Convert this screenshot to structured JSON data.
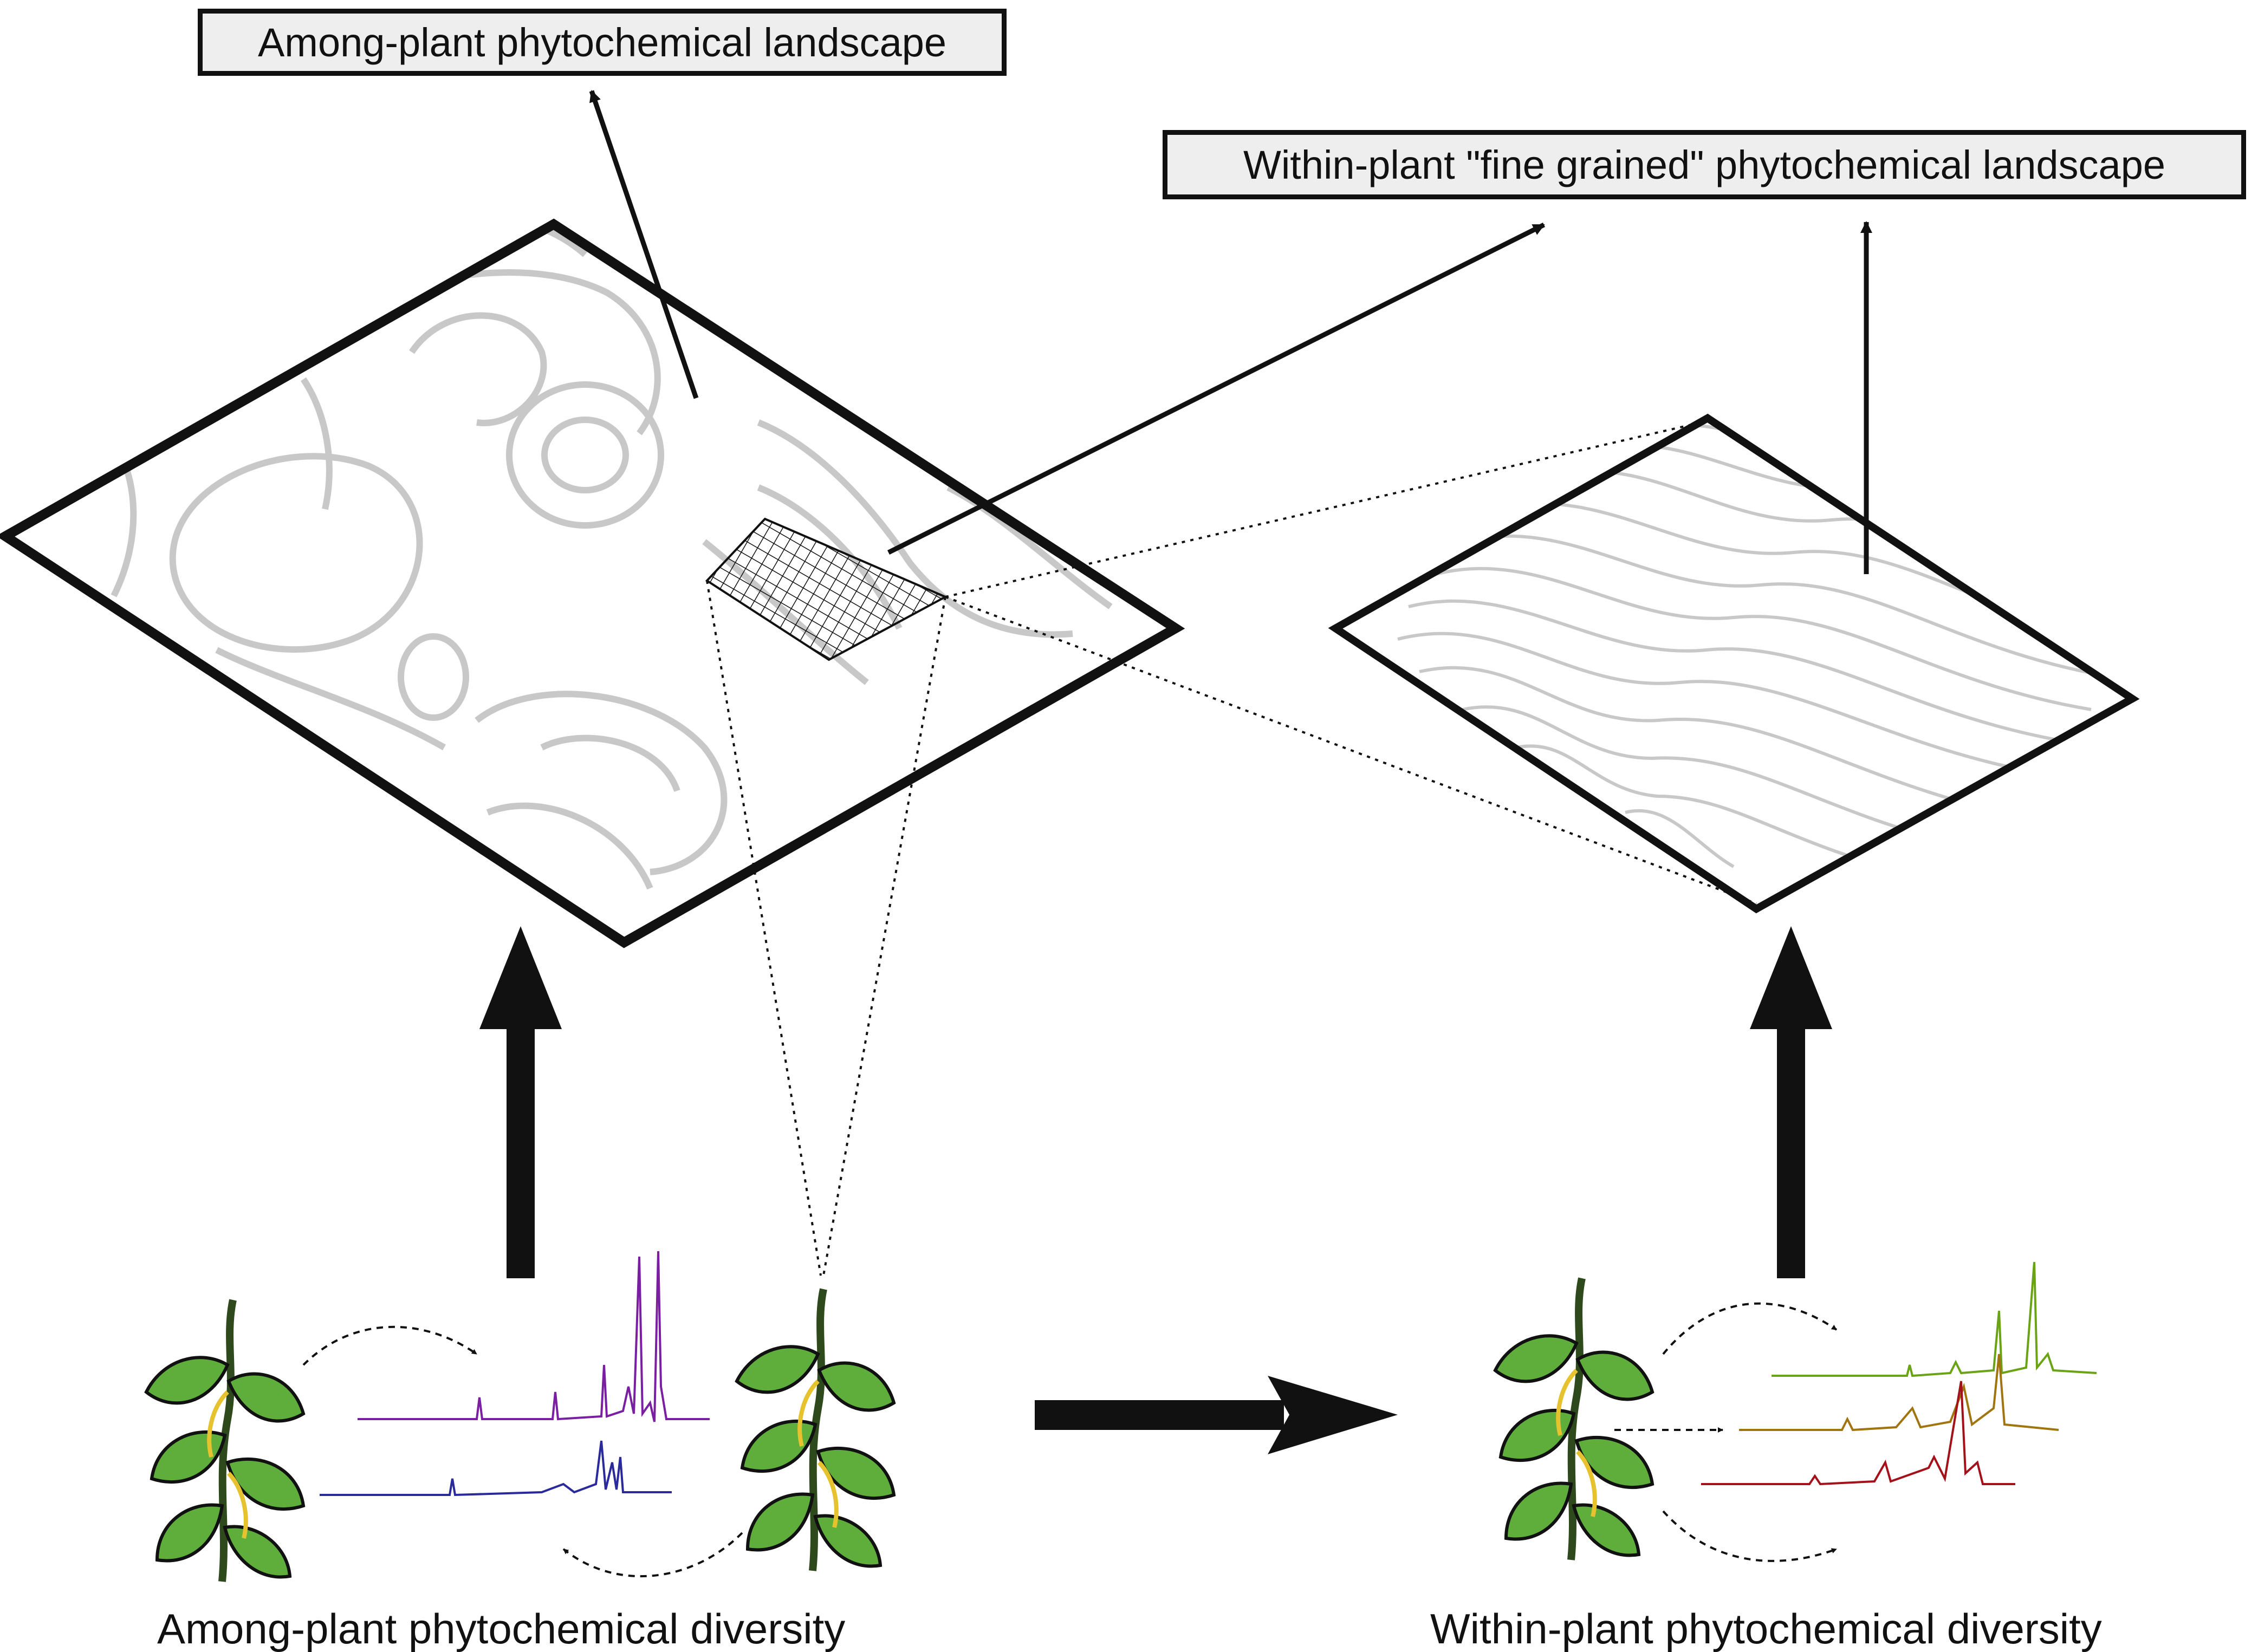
{
  "labels": {
    "among_landscape": "Among-plant phytochemical landscape",
    "within_landscape": "Within-plant \"fine grained\" phytochemical landscape",
    "among_diversity": "Among-plant phytochemical diversity",
    "within_diversity": "Within-plant phytochemical diversity"
  },
  "colors": {
    "outline": "#111111",
    "contour": "#c8c8c8",
    "leaf": "#5fae3c",
    "stem": "#2e4a1c",
    "tendril": "#e7c22f",
    "spectrum_among": [
      "#7a1fa2",
      "#2a2a9a"
    ],
    "spectrum_within": [
      "#6aa316",
      "#a0750f",
      "#a3121a"
    ]
  },
  "icons": [
    "plant-icon",
    "spectrum-trace",
    "contour-map"
  ]
}
